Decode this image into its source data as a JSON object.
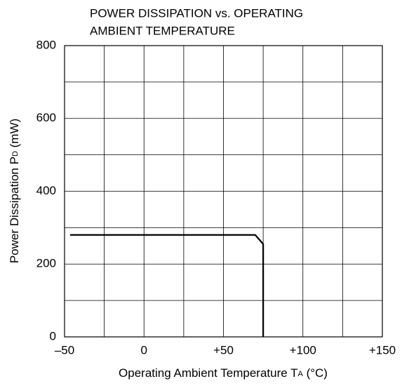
{
  "chart_data": {
    "type": "line",
    "title": [
      "POWER DISSIPATION vs. OPERATING",
      "AMBIENT TEMPERATURE"
    ],
    "x_label": {
      "text": "Operating Ambient Temperature  T",
      "sub": "A",
      "unit": " (°C)"
    },
    "y_label": {
      "text": "Power Dissipation  P",
      "sub": "D",
      "unit": " (mW)"
    },
    "xlim": [
      -50,
      150
    ],
    "xticks": [
      {
        "value": -50,
        "label": "–50"
      },
      0,
      {
        "value": 50,
        "label": "+50"
      },
      {
        "value": 100,
        "label": "+100"
      },
      {
        "value": 150,
        "label": "+150"
      }
    ],
    "xgrid": [
      -25,
      25,
      75,
      125
    ],
    "ylim": [
      0,
      800
    ],
    "yticks": [
      0,
      200,
      400,
      600,
      800
    ],
    "ygrid": [
      100,
      300,
      500,
      700
    ],
    "grid": true,
    "series": [
      {
        "color": "#000000",
        "x": [
          -46.5,
          70,
          75,
          75
        ],
        "values": [
          280,
          280,
          255,
          0
        ]
      }
    ]
  }
}
